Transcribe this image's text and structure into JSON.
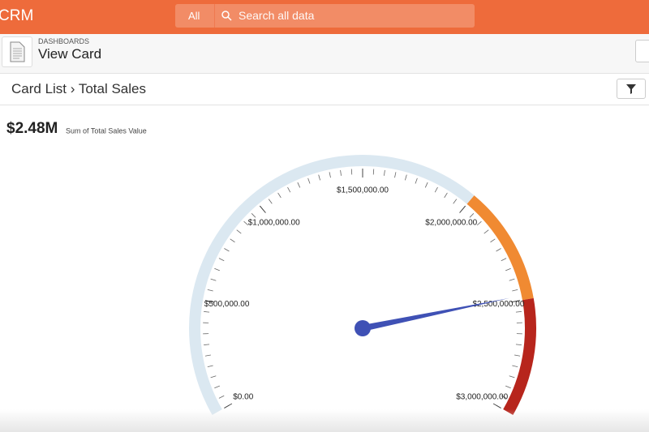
{
  "header": {
    "app": "CRM",
    "search_scope": "All",
    "search_placeholder": "Search all data"
  },
  "page": {
    "section": "DASHBOARDS",
    "title": "View Card"
  },
  "card": {
    "breadcrumb": "Card List › Total Sales"
  },
  "chart_data": {
    "type": "gauge",
    "value": 2480000,
    "value_label": "$2.48M",
    "value_caption": "Sum of Total Sales Value",
    "ylim": [
      0,
      3000000
    ],
    "yticks": [
      {
        "value": 0,
        "label": "$0.00"
      },
      {
        "value": 500000,
        "label": "$500,000.00"
      },
      {
        "value": 1000000,
        "label": "$1,000,000.00"
      },
      {
        "value": 1500000,
        "label": "$1,500,000.00"
      },
      {
        "value": 2000000,
        "label": "$2,000,000.00"
      },
      {
        "value": 2500000,
        "label": "$2,500,000.00"
      },
      {
        "value": 3000000,
        "label": "$3,000,000.00"
      }
    ],
    "minor_tick_interval": 50000,
    "bands": [
      {
        "from": 0,
        "to": 2000000,
        "color": "#dbe8f1"
      },
      {
        "from": 2000000,
        "to": 2500000,
        "color": "#f08a32"
      },
      {
        "from": 2500000,
        "to": 3000000,
        "color": "#b7251c"
      }
    ],
    "needle_color": "#3f51b5"
  }
}
